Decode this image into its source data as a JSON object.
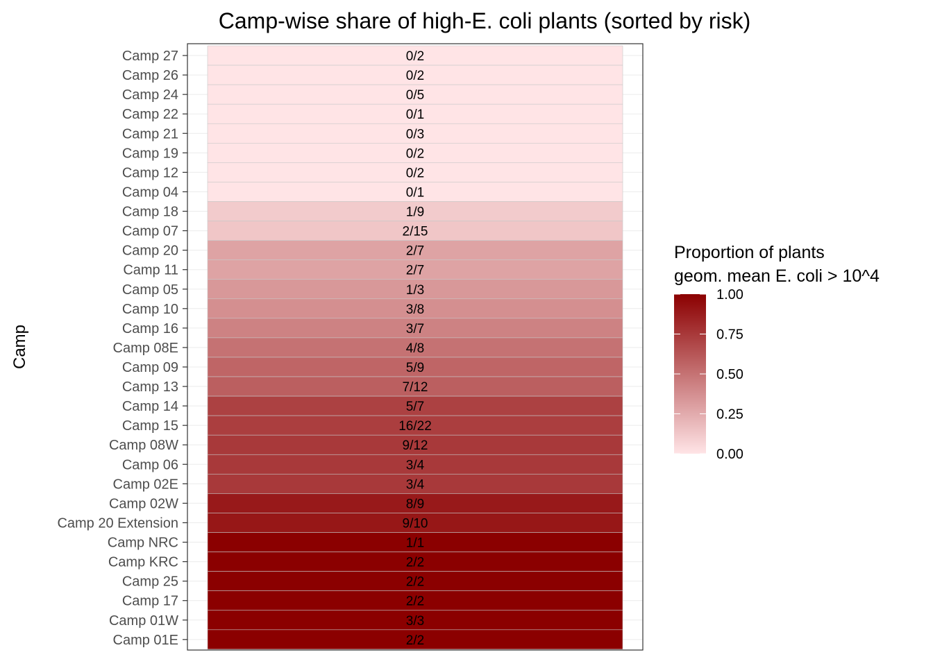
{
  "chart_data": {
    "type": "heatmap",
    "title": "Camp-wise share of high-E. coli plants (sorted by risk)",
    "ylabel": "Camp",
    "xlabel": "",
    "legend": {
      "title_line1": "Proportion of plants",
      "title_line2": "geom. mean E. coli > 10^4",
      "position": "right",
      "range": [
        0,
        1
      ],
      "ticks": [
        "0.00",
        "0.25",
        "0.50",
        "0.75",
        "1.00"
      ],
      "low_color": "#ffe4e6",
      "high_color": "#8b0000"
    },
    "rows": [
      {
        "camp": "Camp 27",
        "label": "0/2",
        "value": 0
      },
      {
        "camp": "Camp 26",
        "label": "0/2",
        "value": 0
      },
      {
        "camp": "Camp 24",
        "label": "0/5",
        "value": 0
      },
      {
        "camp": "Camp 22",
        "label": "0/1",
        "value": 0
      },
      {
        "camp": "Camp 21",
        "label": "0/3",
        "value": 0
      },
      {
        "camp": "Camp 19",
        "label": "0/2",
        "value": 0
      },
      {
        "camp": "Camp 12",
        "label": "0/2",
        "value": 0
      },
      {
        "camp": "Camp 04",
        "label": "0/1",
        "value": 0
      },
      {
        "camp": "Camp 18",
        "label": "1/9",
        "value": 0.111
      },
      {
        "camp": "Camp 07",
        "label": "2/15",
        "value": 0.133
      },
      {
        "camp": "Camp 20",
        "label": "2/7",
        "value": 0.286
      },
      {
        "camp": "Camp 11",
        "label": "2/7",
        "value": 0.286
      },
      {
        "camp": "Camp 05",
        "label": "1/3",
        "value": 0.333
      },
      {
        "camp": "Camp 10",
        "label": "3/8",
        "value": 0.375
      },
      {
        "camp": "Camp 16",
        "label": "3/7",
        "value": 0.429
      },
      {
        "camp": "Camp 08E",
        "label": "4/8",
        "value": 0.5
      },
      {
        "camp": "Camp 09",
        "label": "5/9",
        "value": 0.556
      },
      {
        "camp": "Camp 13",
        "label": "7/12",
        "value": 0.583
      },
      {
        "camp": "Camp 14",
        "label": "5/7",
        "value": 0.714
      },
      {
        "camp": "Camp 15",
        "label": "16/22",
        "value": 0.727
      },
      {
        "camp": "Camp 08W",
        "label": "9/12",
        "value": 0.75
      },
      {
        "camp": "Camp 06",
        "label": "3/4",
        "value": 0.75
      },
      {
        "camp": "Camp 02E",
        "label": "3/4",
        "value": 0.75
      },
      {
        "camp": "Camp 02W",
        "label": "8/9",
        "value": 0.889
      },
      {
        "camp": "Camp 20 Extension",
        "label": "9/10",
        "value": 0.9
      },
      {
        "camp": "Camp NRC",
        "label": "1/1",
        "value": 1
      },
      {
        "camp": "Camp KRC",
        "label": "2/2",
        "value": 1
      },
      {
        "camp": "Camp 25",
        "label": "2/2",
        "value": 1
      },
      {
        "camp": "Camp 17",
        "label": "2/2",
        "value": 1
      },
      {
        "camp": "Camp 01W",
        "label": "3/3",
        "value": 1
      },
      {
        "camp": "Camp 01E",
        "label": "2/2",
        "value": 1
      }
    ]
  }
}
